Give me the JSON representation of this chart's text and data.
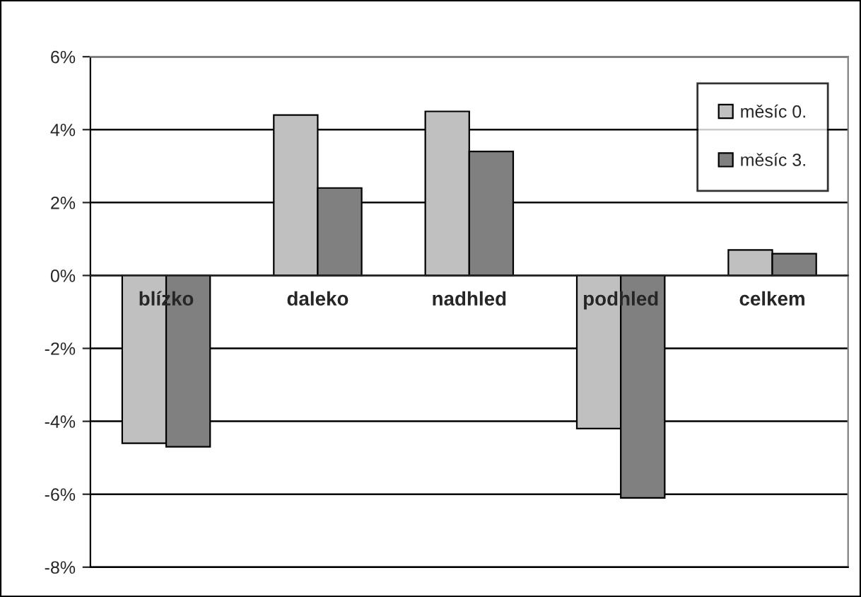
{
  "chart_data": {
    "type": "bar",
    "categories": [
      "blízko",
      "daleko",
      "nadhled",
      "podhled",
      "celkem"
    ],
    "series": [
      {
        "name": "měsíc 0.",
        "color": "#c0c0c0",
        "values": [
          -4.6,
          4.4,
          4.5,
          -4.2,
          0.7
        ]
      },
      {
        "name": "měsíc 3.",
        "color": "#808080",
        "values": [
          -4.7,
          2.4,
          3.4,
          -6.1,
          0.6
        ]
      }
    ],
    "ylim": [
      -8,
      6
    ],
    "yticks": [
      {
        "value": -8,
        "label": "-8%"
      },
      {
        "value": -6,
        "label": "-6%"
      },
      {
        "value": -4,
        "label": "-4%"
      },
      {
        "value": -2,
        "label": "-2%"
      },
      {
        "value": 0,
        "label": "0%"
      },
      {
        "value": 2,
        "label": "2%"
      },
      {
        "value": 4,
        "label": "4%"
      },
      {
        "value": 6,
        "label": "6%"
      }
    ],
    "grid": "y",
    "legend": "top right"
  }
}
